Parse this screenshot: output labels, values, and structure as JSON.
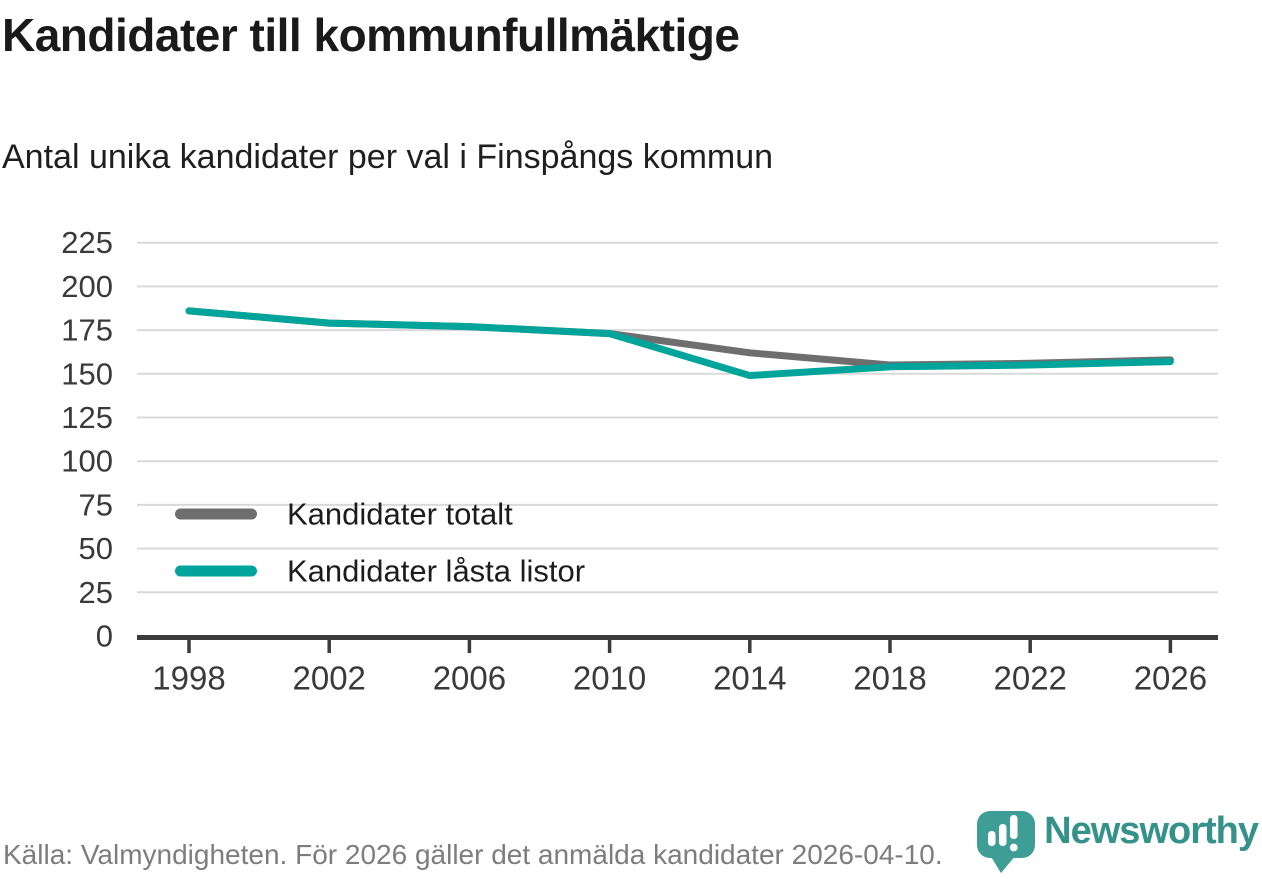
{
  "header": {
    "title": "Kandidater till kommunfullmäktige",
    "subtitle": "Antal unika kandidater per val i Finspångs kommun"
  },
  "chart_data": {
    "type": "line",
    "title": "Kandidater till kommunfullmäktige",
    "subtitle": "Antal unika kandidater per val i Finspångs kommun",
    "x": [
      1998,
      2002,
      2006,
      2010,
      2014,
      2018,
      2022,
      2026
    ],
    "series": [
      {
        "name": "Kandidater totalt",
        "color": "#6e6e6e",
        "values": [
          186,
          179,
          177,
          173,
          162,
          155,
          156,
          158
        ]
      },
      {
        "name": "Kandidater låsta listor",
        "color": "#00a49b",
        "values": [
          186,
          179,
          177,
          173,
          149,
          154,
          155,
          157
        ]
      }
    ],
    "ylim": [
      0,
      225
    ],
    "yticks": [
      0,
      25,
      50,
      75,
      100,
      125,
      150,
      175,
      200,
      225
    ],
    "xlabel": "",
    "ylabel": "",
    "grid": "horizontal",
    "legend_position": "inside-left-bottom",
    "colors": {
      "gridline": "#d9d9d9",
      "axis": "#3b3b3b",
      "tick_label": "#3a3a3a",
      "legend_text": "#1c1c1c"
    }
  },
  "footer": {
    "source": "Källa: Valmyndigheten. För 2026 gäller det anmälda kandidater 2026-04-10."
  },
  "logo": {
    "wordmark": "Newsworthy",
    "pin_color": "#3e9d95",
    "bar_color": "#ffffff"
  }
}
